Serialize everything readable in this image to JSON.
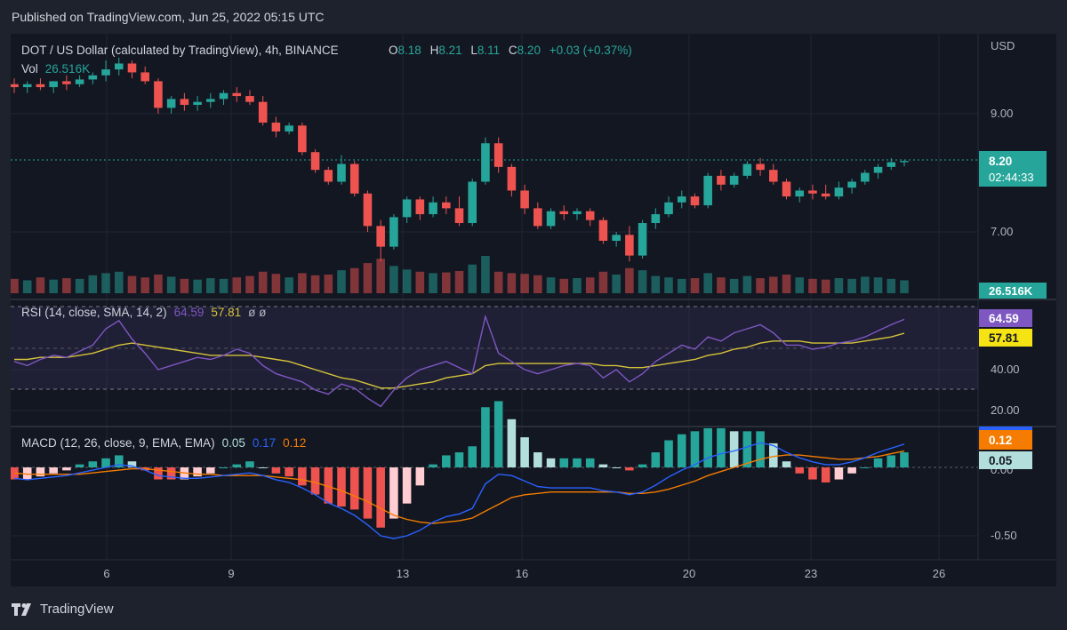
{
  "header": {
    "published": "Published on TradingView.com, Jun 25, 2022 05:15 UTC"
  },
  "footer": {
    "brand": "TradingView"
  },
  "colors": {
    "up": "#26a69a",
    "down": "#ef5350",
    "rsi": "#7e57c2",
    "rsi_ma": "#d5c43a",
    "macd": "#2962ff",
    "signal": "#f57c00",
    "bg": "#131722",
    "frame": "#1e222d"
  },
  "legend": {
    "symbol": "DOT / US Dollar (calculated by TradingView), 4h, BINANCE",
    "o_label": "O",
    "o": "8.18",
    "h_label": "H",
    "h": "8.21",
    "l_label": "L",
    "l": "8.11",
    "c_label": "C",
    "c": "8.20",
    "change": "+0.03 (+0.37%)",
    "vol_label": "Vol",
    "vol": "26.516K",
    "rsi_label": "RSI (14, close, SMA, 14, 2)",
    "rsi_value": "64.59",
    "rsi_ma_value": "57.81",
    "rsi_extra": "ø ø",
    "macd_label": "MACD (12, 26, close, 9, EMA, EMA)",
    "macd_hist": "0.05",
    "macd_value": "0.17",
    "signal_value": "0.12"
  },
  "price_axis": {
    "currency": "USD",
    "ticks": [
      "9.00",
      "7.00"
    ],
    "last_price": "8.20",
    "countdown": "02:44:33",
    "volume_label": "26.516K"
  },
  "rsi_axis": {
    "ticks": [
      "40.00",
      "20.00"
    ],
    "value": "64.59",
    "ma": "57.81"
  },
  "macd_axis": {
    "ticks": [
      "0.00",
      "-0.50"
    ],
    "signal": "0.12",
    "hist": "0.05"
  },
  "time_axis": {
    "labels": [
      "6",
      "9",
      "13",
      "16",
      "20",
      "23",
      "26"
    ]
  },
  "chart_data": [
    {
      "type": "candlestick",
      "title": "DOT / US Dollar (calculated by TradingView), 4h, BINANCE",
      "ylabel": "USD",
      "ylim": [
        6.3,
        9.9
      ],
      "x_start": "Jun 4",
      "x_end": "Jun 25",
      "x_ticks": [
        "6",
        "9",
        "13",
        "16",
        "20",
        "23",
        "26"
      ],
      "ohlc_points": [
        [
          9.5,
          9.6,
          9.35,
          9.45
        ],
        [
          9.45,
          9.55,
          9.35,
          9.5
        ],
        [
          9.5,
          9.6,
          9.4,
          9.45
        ],
        [
          9.45,
          9.55,
          9.35,
          9.55
        ],
        [
          9.55,
          9.65,
          9.4,
          9.5
        ],
        [
          9.5,
          9.65,
          9.45,
          9.58
        ],
        [
          9.58,
          9.7,
          9.5,
          9.65
        ],
        [
          9.65,
          9.9,
          9.55,
          9.75
        ],
        [
          9.75,
          9.95,
          9.65,
          9.85
        ],
        [
          9.85,
          9.9,
          9.6,
          9.7
        ],
        [
          9.7,
          9.8,
          9.5,
          9.55
        ],
        [
          9.55,
          9.6,
          9.0,
          9.1
        ],
        [
          9.1,
          9.3,
          9.0,
          9.25
        ],
        [
          9.25,
          9.35,
          9.05,
          9.15
        ],
        [
          9.15,
          9.3,
          9.05,
          9.2
        ],
        [
          9.2,
          9.35,
          9.1,
          9.25
        ],
        [
          9.25,
          9.4,
          9.15,
          9.35
        ],
        [
          9.35,
          9.45,
          9.2,
          9.3
        ],
        [
          9.3,
          9.4,
          9.15,
          9.2
        ],
        [
          9.2,
          9.3,
          8.8,
          8.85
        ],
        [
          8.85,
          8.95,
          8.6,
          8.7
        ],
        [
          8.7,
          8.85,
          8.65,
          8.8
        ],
        [
          8.8,
          8.85,
          8.3,
          8.35
        ],
        [
          8.35,
          8.4,
          8.0,
          8.05
        ],
        [
          8.05,
          8.1,
          7.8,
          7.85
        ],
        [
          7.85,
          8.3,
          7.8,
          8.15
        ],
        [
          8.15,
          8.2,
          7.6,
          7.65
        ],
        [
          7.65,
          7.7,
          7.0,
          7.1
        ],
        [
          7.1,
          7.2,
          6.5,
          6.75
        ],
        [
          6.75,
          7.3,
          6.7,
          7.25
        ],
        [
          7.25,
          7.6,
          7.15,
          7.55
        ],
        [
          7.55,
          7.6,
          7.2,
          7.3
        ],
        [
          7.3,
          7.6,
          7.25,
          7.5
        ],
        [
          7.5,
          7.6,
          7.3,
          7.4
        ],
        [
          7.4,
          7.6,
          7.1,
          7.15
        ],
        [
          7.15,
          7.9,
          7.1,
          7.85
        ],
        [
          7.85,
          8.6,
          7.8,
          8.5
        ],
        [
          8.5,
          8.6,
          8.0,
          8.1
        ],
        [
          8.1,
          8.15,
          7.6,
          7.7
        ],
        [
          7.7,
          7.8,
          7.3,
          7.4
        ],
        [
          7.4,
          7.5,
          7.05,
          7.1
        ],
        [
          7.1,
          7.4,
          7.05,
          7.35
        ],
        [
          7.35,
          7.45,
          7.2,
          7.3
        ],
        [
          7.3,
          7.4,
          7.2,
          7.35
        ],
        [
          7.35,
          7.4,
          7.1,
          7.2
        ],
        [
          7.2,
          7.25,
          6.8,
          6.85
        ],
        [
          6.85,
          7.0,
          6.75,
          6.95
        ],
        [
          6.95,
          7.1,
          6.5,
          6.6
        ],
        [
          6.6,
          7.2,
          6.55,
          7.15
        ],
        [
          7.15,
          7.4,
          7.05,
          7.3
        ],
        [
          7.3,
          7.6,
          7.25,
          7.5
        ],
        [
          7.5,
          7.7,
          7.4,
          7.6
        ],
        [
          7.6,
          7.65,
          7.4,
          7.45
        ],
        [
          7.45,
          8.0,
          7.4,
          7.95
        ],
        [
          7.95,
          8.05,
          7.7,
          7.8
        ],
        [
          7.8,
          8.0,
          7.75,
          7.95
        ],
        [
          7.95,
          8.2,
          7.9,
          8.15
        ],
        [
          8.15,
          8.25,
          7.95,
          8.05
        ],
        [
          8.05,
          8.15,
          7.8,
          7.85
        ],
        [
          7.85,
          7.9,
          7.55,
          7.6
        ],
        [
          7.6,
          7.75,
          7.5,
          7.7
        ],
        [
          7.7,
          7.8,
          7.55,
          7.65
        ],
        [
          7.65,
          7.8,
          7.55,
          7.6
        ],
        [
          7.6,
          7.85,
          7.55,
          7.75
        ],
        [
          7.75,
          7.9,
          7.65,
          7.85
        ],
        [
          7.85,
          8.05,
          7.8,
          8.0
        ],
        [
          8.0,
          8.15,
          7.9,
          8.1
        ],
        [
          8.1,
          8.25,
          8.05,
          8.18
        ],
        [
          8.18,
          8.21,
          8.11,
          8.2
        ]
      ]
    },
    {
      "type": "bar",
      "title": "Vol",
      "last_value": "26.516K",
      "values": [
        20,
        18,
        22,
        19,
        21,
        20,
        25,
        28,
        30,
        24,
        22,
        26,
        23,
        20,
        19,
        21,
        20,
        22,
        24,
        30,
        27,
        22,
        28,
        25,
        26,
        32,
        35,
        42,
        48,
        38,
        33,
        30,
        28,
        29,
        31,
        40,
        52,
        30,
        28,
        27,
        25,
        22,
        20,
        21,
        22,
        30,
        26,
        35,
        32,
        24,
        22,
        20,
        21,
        28,
        22,
        20,
        24,
        21,
        23,
        26,
        22,
        20,
        19,
        21,
        20,
        23,
        22,
        20,
        18
      ]
    },
    {
      "type": "line",
      "title": "RSI (14, close, SMA, 14, 2)",
      "ylim": [
        15,
        80
      ],
      "y_ticks": [
        40,
        20
      ],
      "band": [
        30,
        70
      ],
      "series": [
        {
          "name": "RSI",
          "last": 64.59,
          "values": [
            44,
            42,
            45,
            47,
            46,
            49,
            52,
            60,
            64,
            55,
            48,
            40,
            42,
            44,
            46,
            45,
            47,
            50,
            48,
            42,
            38,
            36,
            34,
            30,
            28,
            33,
            31,
            26,
            22,
            30,
            36,
            40,
            42,
            44,
            41,
            38,
            66,
            48,
            44,
            40,
            38,
            40,
            42,
            43,
            42,
            36,
            40,
            34,
            38,
            44,
            48,
            52,
            50,
            56,
            54,
            58,
            60,
            62,
            58,
            52,
            52,
            50,
            51,
            53,
            54,
            56,
            59,
            62,
            64.59
          ]
        },
        {
          "name": "RSI MA",
          "last": 57.81,
          "values": [
            45,
            45,
            46,
            46,
            46,
            47,
            48,
            50,
            52,
            53,
            52,
            51,
            50,
            49,
            48,
            47,
            47,
            47,
            47,
            46,
            45,
            44,
            42,
            40,
            38,
            36,
            35,
            33,
            31,
            31,
            32,
            33,
            34,
            36,
            37,
            38,
            42,
            43,
            43,
            43,
            43,
            43,
            43,
            43,
            43,
            42,
            42,
            41,
            41,
            42,
            43,
            44,
            45,
            47,
            48,
            50,
            51,
            53,
            54,
            54,
            54,
            53,
            53,
            53,
            53,
            54,
            55,
            56,
            57.81
          ]
        }
      ]
    },
    {
      "type": "line",
      "title": "MACD (12, 26, close, 9, EMA, EMA)",
      "ylim": [
        -0.6,
        0.3
      ],
      "y_ticks": [
        0.0,
        -0.5
      ],
      "series": [
        {
          "name": "MACD",
          "last": 0.17,
          "values": [
            -0.08,
            -0.09,
            -0.08,
            -0.07,
            -0.06,
            -0.04,
            -0.02,
            0.0,
            0.02,
            0.01,
            -0.02,
            -0.06,
            -0.07,
            -0.08,
            -0.08,
            -0.07,
            -0.06,
            -0.05,
            -0.04,
            -0.06,
            -0.09,
            -0.11,
            -0.15,
            -0.2,
            -0.26,
            -0.3,
            -0.35,
            -0.42,
            -0.5,
            -0.52,
            -0.5,
            -0.46,
            -0.4,
            -0.36,
            -0.34,
            -0.3,
            -0.12,
            -0.05,
            -0.06,
            -0.1,
            -0.14,
            -0.15,
            -0.15,
            -0.15,
            -0.15,
            -0.17,
            -0.18,
            -0.2,
            -0.18,
            -0.13,
            -0.07,
            -0.02,
            0.02,
            0.07,
            0.1,
            0.12,
            0.15,
            0.18,
            0.16,
            0.11,
            0.07,
            0.04,
            0.02,
            0.02,
            0.04,
            0.07,
            0.11,
            0.14,
            0.17
          ]
        },
        {
          "name": "Signal",
          "last": 0.12,
          "values": [
            -0.04,
            -0.05,
            -0.05,
            -0.05,
            -0.05,
            -0.05,
            -0.04,
            -0.03,
            -0.02,
            -0.01,
            -0.01,
            -0.02,
            -0.03,
            -0.04,
            -0.05,
            -0.05,
            -0.06,
            -0.06,
            -0.06,
            -0.06,
            -0.07,
            -0.08,
            -0.09,
            -0.11,
            -0.14,
            -0.17,
            -0.21,
            -0.25,
            -0.3,
            -0.35,
            -0.38,
            -0.4,
            -0.41,
            -0.4,
            -0.39,
            -0.37,
            -0.32,
            -0.27,
            -0.22,
            -0.2,
            -0.19,
            -0.18,
            -0.18,
            -0.18,
            -0.18,
            -0.18,
            -0.18,
            -0.19,
            -0.19,
            -0.18,
            -0.16,
            -0.13,
            -0.1,
            -0.06,
            -0.03,
            0.0,
            0.03,
            0.06,
            0.08,
            0.09,
            0.09,
            0.08,
            0.07,
            0.06,
            0.06,
            0.07,
            0.08,
            0.1,
            0.12
          ]
        }
      ]
    }
  ]
}
